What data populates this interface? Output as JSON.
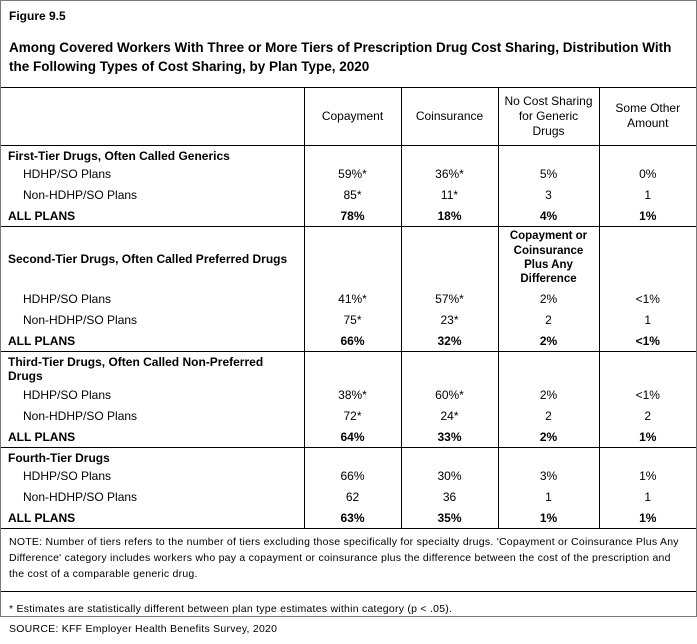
{
  "header": {
    "figure_label": "Figure 9.5",
    "title": "Among Covered Workers With Three or More Tiers of Prescription Drug Cost Sharing, Distribution With the Following Types of Cost Sharing, by Plan Type, 2020"
  },
  "chart_data": {
    "type": "table",
    "title": "Among Covered Workers With Three or More Tiers of Prescription Drug Cost Sharing, Distribution With the Following Types of Cost Sharing, by Plan Type, 2020",
    "columns": [
      "Copayment",
      "Coinsurance",
      "No Cost Sharing for Generic Drugs",
      "Some Other Amount"
    ],
    "sections": [
      {
        "header": "First-Tier Drugs, Often Called Generics",
        "subheader": "",
        "rows": [
          {
            "label": "HDHP/SO Plans",
            "bold": false,
            "values": [
              "59%*",
              "36%*",
              "5%",
              "0%"
            ]
          },
          {
            "label": "Non-HDHP/SO Plans",
            "bold": false,
            "values": [
              "85*",
              "11*",
              "3",
              "1"
            ]
          },
          {
            "label": "ALL PLANS",
            "bold": true,
            "values": [
              "78%",
              "18%",
              "4%",
              "1%"
            ]
          }
        ]
      },
      {
        "header": "Second-Tier Drugs, Often Called Preferred Drugs",
        "subheader": "Copayment or Coinsurance Plus Any Difference",
        "rows": [
          {
            "label": "HDHP/SO Plans",
            "bold": false,
            "values": [
              "41%*",
              "57%*",
              "2%",
              "<1%"
            ]
          },
          {
            "label": "Non-HDHP/SO Plans",
            "bold": false,
            "values": [
              "75*",
              "23*",
              "2",
              "1"
            ]
          },
          {
            "label": "ALL PLANS",
            "bold": true,
            "values": [
              "66%",
              "32%",
              "2%",
              "<1%"
            ]
          }
        ]
      },
      {
        "header": "Third-Tier Drugs, Often Called Non-Preferred Drugs",
        "subheader": "",
        "rows": [
          {
            "label": "HDHP/SO Plans",
            "bold": false,
            "values": [
              "38%*",
              "60%*",
              "2%",
              "<1%"
            ]
          },
          {
            "label": "Non-HDHP/SO Plans",
            "bold": false,
            "values": [
              "72*",
              "24*",
              "2",
              "2"
            ]
          },
          {
            "label": "ALL PLANS",
            "bold": true,
            "values": [
              "64%",
              "33%",
              "2%",
              "1%"
            ]
          }
        ]
      },
      {
        "header": "Fourth-Tier Drugs",
        "subheader": "",
        "rows": [
          {
            "label": "HDHP/SO Plans",
            "bold": false,
            "values": [
              "66%",
              "30%",
              "3%",
              "1%"
            ]
          },
          {
            "label": "Non-HDHP/SO Plans",
            "bold": false,
            "values": [
              "62",
              "36",
              "1",
              "1"
            ]
          },
          {
            "label": "ALL PLANS",
            "bold": true,
            "values": [
              "63%",
              "35%",
              "1%",
              "1%"
            ]
          }
        ]
      }
    ]
  },
  "footnotes": {
    "note": "NOTE: Number of tiers refers to the number of tiers excluding those specifically for specialty drugs. 'Copayment or Coinsurance Plus Any Difference' category includes workers who pay a copayment or coinsurance plus the difference between the cost of the prescription and the cost of a comparable generic drug.",
    "asterisk": "* Estimates are statistically different between plan type estimates within category (p < .05).",
    "source": "SOURCE: KFF Employer Health Benefits Survey, 2020"
  }
}
